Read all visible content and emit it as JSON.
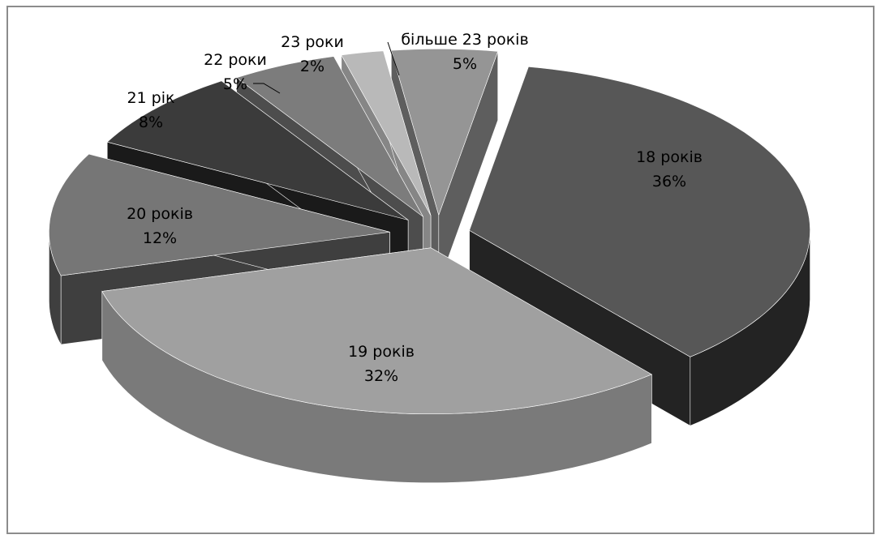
{
  "chart_data": {
    "type": "pie",
    "style": "3d-exploded",
    "title": "",
    "legend": "none",
    "slices": [
      {
        "label": "18 років",
        "value": 36,
        "percent": "36%",
        "top": "#575757",
        "side": "#232323"
      },
      {
        "label": "19 років",
        "value": 32,
        "percent": "32%",
        "top": "#a0a0a0",
        "side": "#7a7a7a"
      },
      {
        "label": "20 років",
        "value": 12,
        "percent": "12%",
        "top": "#767676",
        "side": "#3f3f3f"
      },
      {
        "label": "21 рік",
        "value": 8,
        "percent": "8%",
        "top": "#3b3b3b",
        "side": "#1a1a1a"
      },
      {
        "label": "22 роки",
        "value": 5,
        "percent": "5%",
        "top": "#7c7c7c",
        "side": "#4d4d4d"
      },
      {
        "label": "23 роки",
        "value": 2,
        "percent": "2%",
        "top": "#b9b9b9",
        "side": "#868686"
      },
      {
        "label": "більше 23 років",
        "value": 5,
        "percent": "5%",
        "top": "#959595",
        "side": "#5e5e5e"
      }
    ]
  }
}
